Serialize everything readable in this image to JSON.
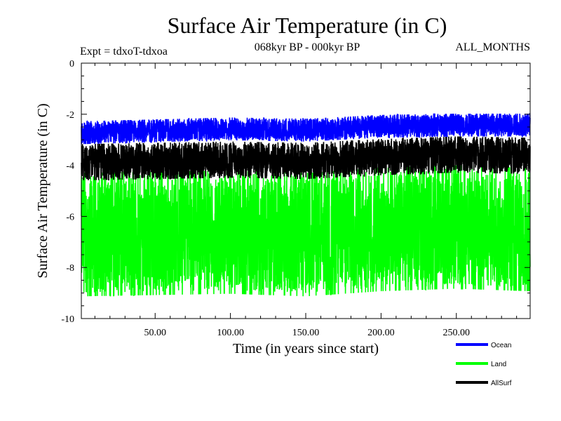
{
  "chart_data": {
    "type": "line",
    "title": "Surface Air Temperature (in C)",
    "subtitle": "068kyr BP - 000kyr BP",
    "left_annotation": "Expt = tdxoT-tdxoa",
    "right_annotation": "ALL_MONTHS",
    "xlabel": "Time (in years since start)",
    "ylabel": "Surface Air Temperature (in C)",
    "xlim": [
      1,
      299
    ],
    "ylim": [
      -10,
      0
    ],
    "x_ticks": [
      {
        "value": 50,
        "label": "50.00"
      },
      {
        "value": 100,
        "label": "100.00"
      },
      {
        "value": 150,
        "label": "150.00"
      },
      {
        "value": 200,
        "label": "200.00"
      },
      {
        "value": 250,
        "label": "250.00"
      }
    ],
    "y_ticks": [
      {
        "value": 0,
        "label": "0"
      },
      {
        "value": -2,
        "label": "-2"
      },
      {
        "value": -4,
        "label": "-4"
      },
      {
        "value": -6,
        "label": "-6"
      },
      {
        "value": -8,
        "label": "-8"
      },
      {
        "value": -10,
        "label": "-10"
      }
    ],
    "legend_position": "bottom-right",
    "grid": false,
    "series": [
      {
        "name": "Ocean",
        "color": "#0000ff",
        "mean": [
          [
            1,
            -2.75
          ],
          [
            100,
            -2.6
          ],
          [
            150,
            -2.65
          ],
          [
            200,
            -2.5
          ],
          [
            250,
            -2.45
          ],
          [
            299,
            -2.45
          ]
        ],
        "spread": [
          -0.4,
          0.45
        ]
      },
      {
        "name": "Land",
        "color": "#00ff00",
        "mean": [
          [
            1,
            -6.4
          ],
          [
            100,
            -6.3
          ],
          [
            150,
            -6.4
          ],
          [
            200,
            -6.2
          ],
          [
            250,
            -6.1
          ],
          [
            299,
            -6.2
          ]
        ],
        "spread": [
          -2.6,
          2.0
        ]
      },
      {
        "name": "AllSurf",
        "color": "#000000",
        "mean": [
          [
            1,
            -3.8
          ],
          [
            100,
            -3.7
          ],
          [
            150,
            -3.75
          ],
          [
            200,
            -3.6
          ],
          [
            250,
            -3.5
          ],
          [
            299,
            -3.55
          ]
        ],
        "spread": [
          -0.75,
          0.6
        ]
      }
    ],
    "legend_order": [
      "Ocean",
      "Land",
      "AllSurf"
    ]
  }
}
